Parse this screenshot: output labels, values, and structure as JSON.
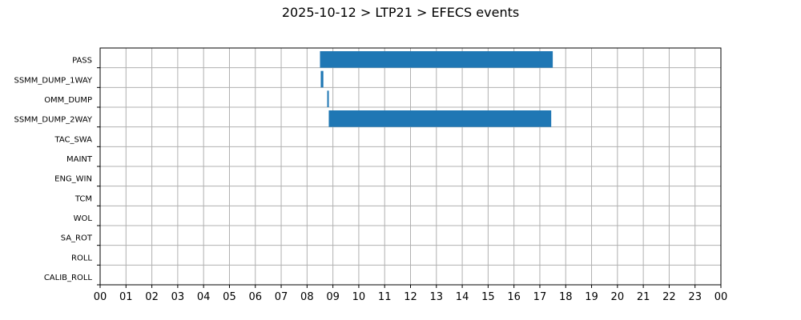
{
  "chart_data": {
    "type": "gantt",
    "title": "2025-10-12 > LTP21 > EFECS events",
    "bar_color": "#1f77b4",
    "grid_color": "#b0b0b0",
    "grid": true,
    "xlim": [
      0,
      24
    ],
    "x_ticks": [
      "00",
      "01",
      "02",
      "03",
      "04",
      "05",
      "06",
      "07",
      "08",
      "09",
      "10",
      "11",
      "12",
      "13",
      "14",
      "15",
      "16",
      "17",
      "18",
      "19",
      "20",
      "21",
      "22",
      "23",
      "00"
    ],
    "categories": [
      "PASS",
      "SSMM_DUMP_1WAY",
      "OMM_DUMP",
      "SSMM_DUMP_2WAY",
      "TAC_SWA",
      "MAINT",
      "ENG_WIN",
      "TCM",
      "WOL",
      "SA_ROT",
      "ROLL",
      "CALIB_ROLL"
    ],
    "events": [
      {
        "category": "PASS",
        "start": 8.5,
        "end": 17.5
      },
      {
        "category": "SSMM_DUMP_1WAY",
        "start": 8.53,
        "end": 8.63
      },
      {
        "category": "OMM_DUMP",
        "start": 8.78,
        "end": 8.84
      },
      {
        "category": "SSMM_DUMP_2WAY",
        "start": 8.84,
        "end": 17.44
      }
    ]
  }
}
